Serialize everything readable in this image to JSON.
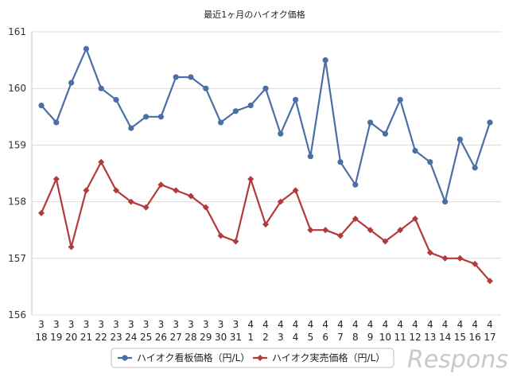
{
  "chart_data": {
    "type": "line",
    "title": "最近1ヶ月のハイオク価格",
    "ylim": [
      156,
      161
    ],
    "yticks": [
      "156",
      "157",
      "158",
      "159",
      "160",
      "161"
    ],
    "grid": true,
    "legend_placement": "bottom",
    "categories": [
      [
        "3",
        "18"
      ],
      [
        "3",
        "19"
      ],
      [
        "3",
        "20"
      ],
      [
        "3",
        "21"
      ],
      [
        "3",
        "22"
      ],
      [
        "3",
        "23"
      ],
      [
        "3",
        "24"
      ],
      [
        "3",
        "25"
      ],
      [
        "3",
        "26"
      ],
      [
        "3",
        "27"
      ],
      [
        "3",
        "28"
      ],
      [
        "3",
        "29"
      ],
      [
        "3",
        "30"
      ],
      [
        "3",
        "31"
      ],
      [
        "4",
        "1"
      ],
      [
        "4",
        "2"
      ],
      [
        "4",
        "3"
      ],
      [
        "4",
        "4"
      ],
      [
        "4",
        "5"
      ],
      [
        "4",
        "6"
      ],
      [
        "4",
        "7"
      ],
      [
        "4",
        "8"
      ],
      [
        "4",
        "9"
      ],
      [
        "4",
        "10"
      ],
      [
        "4",
        "11"
      ],
      [
        "4",
        "12"
      ],
      [
        "4",
        "13"
      ],
      [
        "4",
        "14"
      ],
      [
        "4",
        "15"
      ],
      [
        "4",
        "16"
      ],
      [
        "4",
        "17"
      ]
    ],
    "series": [
      {
        "name": "ハイオク看板価格（円/L）",
        "color": "#4a6fa5",
        "marker": "circle",
        "values": [
          159.7,
          159.4,
          160.1,
          160.7,
          160.0,
          159.8,
          159.3,
          159.5,
          159.5,
          160.2,
          160.2,
          160.0,
          159.4,
          159.6,
          159.7,
          160.0,
          159.2,
          159.8,
          158.8,
          160.5,
          158.7,
          158.3,
          159.4,
          159.2,
          159.8,
          158.9,
          158.7,
          158.0,
          159.1,
          158.6,
          159.4
        ]
      },
      {
        "name": "ハイオク実売価格（円/L）",
        "color": "#b23a3a",
        "marker": "diamond",
        "values": [
          157.8,
          158.4,
          157.2,
          158.2,
          158.7,
          158.2,
          158.0,
          157.9,
          158.3,
          158.2,
          158.1,
          157.9,
          157.4,
          157.3,
          158.4,
          157.6,
          158.0,
          158.2,
          157.5,
          157.5,
          157.4,
          157.7,
          157.5,
          157.3,
          157.5,
          157.7,
          157.1,
          157.0,
          157.0,
          156.9,
          156.6
        ]
      }
    ]
  },
  "watermark": "Response."
}
